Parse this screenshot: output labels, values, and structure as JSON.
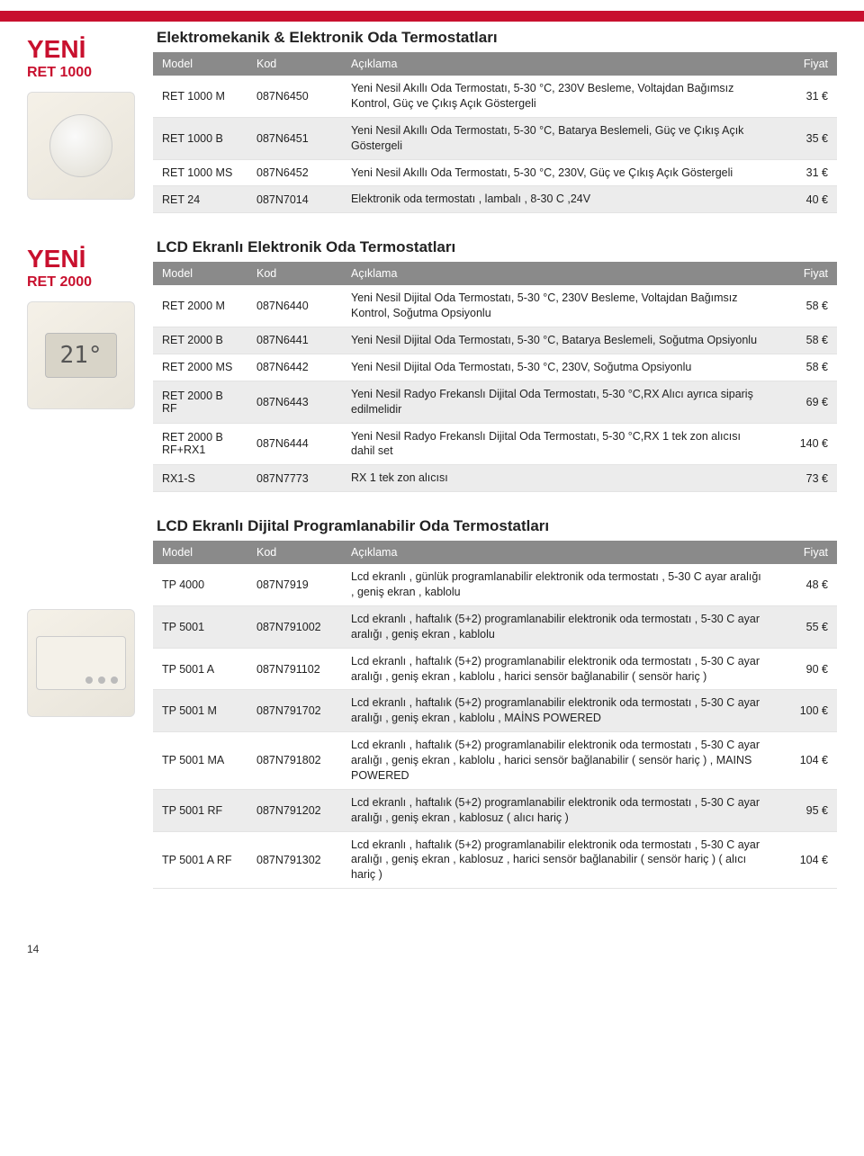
{
  "labels": {
    "new": "YENİ",
    "col_model": "Model",
    "col_code": "Kod",
    "col_desc": "Açıklama",
    "col_price": "Fiyat"
  },
  "pageNumber": "14",
  "lcdSample": "21°",
  "section1": {
    "badgeSub": "RET 1000",
    "title": "Elektromekanik & Elektronik Oda Termostatları",
    "rows": [
      {
        "model": "RET 1000 M",
        "code": "087N6450",
        "desc": "Yeni Nesil Akıllı Oda Termostatı, 5-30 °C, 230V Besleme, Voltajdan Bağımsız Kontrol, Güç ve Çıkış Açık Göstergeli",
        "price": "31 €"
      },
      {
        "model": "RET 1000 B",
        "code": "087N6451",
        "desc": "Yeni Nesil Akıllı Oda Termostatı, 5-30 °C, Batarya Beslemeli, Güç ve Çıkış Açık Göstergeli",
        "price": "35 €"
      },
      {
        "model": "RET 1000 MS",
        "code": "087N6452",
        "desc": "Yeni Nesil Akıllı Oda Termostatı, 5-30 °C, 230V, Güç ve Çıkış Açık Göstergeli",
        "price": "31 €"
      },
      {
        "model": "RET 24",
        "code": "087N7014",
        "desc": "Elektronik oda termostatı , lambalı , 8-30 C ,24V",
        "price": "40 €"
      }
    ]
  },
  "section2": {
    "badgeSub": "RET 2000",
    "title": "LCD Ekranlı Elektronik Oda Termostatları",
    "rows": [
      {
        "model": "RET 2000 M",
        "code": "087N6440",
        "desc": "Yeni Nesil Dijital Oda Termostatı, 5-30 °C, 230V Besleme, Voltajdan Bağımsız Kontrol, Soğutma Opsiyonlu",
        "price": "58 €"
      },
      {
        "model": "RET 2000 B",
        "code": "087N6441",
        "desc": "Yeni Nesil Dijital Oda Termostatı, 5-30 °C, Batarya Beslemeli, Soğutma Opsiyonlu",
        "price": "58 €"
      },
      {
        "model": "RET 2000 MS",
        "code": "087N6442",
        "desc": "Yeni Nesil Dijital Oda Termostatı, 5-30 °C, 230V, Soğutma Opsiyonlu",
        "price": "58 €"
      },
      {
        "model": "RET 2000 B RF",
        "code": "087N6443",
        "desc": "Yeni Nesil Radyo Frekanslı Dijital Oda Termostatı, 5-30 °C,RX Alıcı ayrıca sipariş edilmelidir",
        "price": "69 €"
      },
      {
        "model": "RET 2000 B RF+RX1",
        "code": "087N6444",
        "desc": "Yeni Nesil Radyo Frekanslı Dijital Oda Termostatı, 5-30 °C,RX 1 tek zon alıcısı dahil set",
        "price": "140 €"
      },
      {
        "model": "RX1-S",
        "code": "087N7773",
        "desc": "RX 1 tek zon alıcısı",
        "price": "73 €"
      }
    ]
  },
  "section3": {
    "title": "LCD Ekranlı Dijital Programlanabilir  Oda Termostatları",
    "rows": [
      {
        "model": "TP 4000",
        "code": "087N7919",
        "desc": "Lcd ekranlı , günlük programlanabilir elektronik oda termostatı , 5-30 C ayar aralığı , geniş ekran , kablolu",
        "price": "48 €"
      },
      {
        "model": "TP 5001",
        "code": "087N791002",
        "desc": "Lcd ekranlı , haftalık (5+2) programlanabilir elektronik oda termostatı , 5-30 C ayar aralığı , geniş ekran , kablolu",
        "price": "55 €"
      },
      {
        "model": "TP 5001 A",
        "code": "087N791102",
        "desc": "Lcd ekranlı , haftalık (5+2) programlanabilir elektronik oda termostatı , 5-30 C ayar aralığı , geniş ekran , kablolu , harici sensör bağlanabilir ( sensör hariç )",
        "price": "90 €"
      },
      {
        "model": "TP 5001 M",
        "code": "087N791702",
        "desc": "Lcd ekranlı , haftalık (5+2) programlanabilir elektronik oda termostatı , 5-30 C ayar aralığı , geniş ekran , kablolu , MAİNS POWERED",
        "price": "100 €"
      },
      {
        "model": "TP 5001 MA",
        "code": "087N791802",
        "desc": "Lcd ekranlı , haftalık (5+2) programlanabilir elektronik oda termostatı , 5-30 C ayar aralığı , geniş ekran , kablolu , harici sensör bağlanabilir ( sensör hariç ) , MAINS POWERED",
        "price": "104 €"
      },
      {
        "model": "TP 5001 RF",
        "code": "087N791202",
        "desc": "Lcd ekranlı , haftalık (5+2) programlanabilir elektronik oda termostatı , 5-30 C ayar aralığı , geniş ekran , kablosuz ( alıcı hariç )",
        "price": "95 €"
      },
      {
        "model": "TP 5001 A RF",
        "code": "087N791302",
        "desc": "Lcd ekranlı , haftalık (5+2) programlanabilir elektronik oda termostatı , 5-30 C ayar aralığı , geniş ekran , kablosuz , harici sensör bağlanabilir ( sensör hariç )       ( alıcı hariç )",
        "price": "104 €"
      }
    ]
  }
}
